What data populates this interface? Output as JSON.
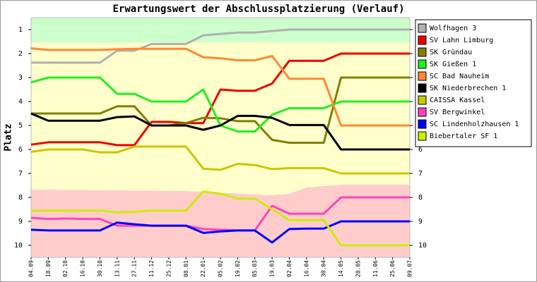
{
  "chart_data": {
    "type": "line",
    "title": "Erwartungswert der Abschlussplatzierung (Verlauf)",
    "y_label": "Platz",
    "categories": [
      "04.09",
      "18.09",
      "02.10",
      "16.10",
      "30.10",
      "13.11",
      "27.11",
      "11.12",
      "25.12",
      "08.01",
      "22.01",
      "05.02",
      "19.02",
      "05.03",
      "19.03",
      "02.04",
      "16.04",
      "30.04",
      "14.05",
      "28.05",
      "11.06",
      "25.06",
      "09.07"
    ],
    "ylim": [
      10.5,
      0.5
    ],
    "yticks": [
      1,
      2,
      3,
      4,
      5,
      6,
      7,
      8,
      9,
      10
    ],
    "grid": false,
    "legend": "right",
    "series": [
      {
        "name": "Wolfhagen 3",
        "color": "#b0b0b0",
        "values": [
          2.38,
          2.38,
          2.38,
          2.38,
          2.38,
          1.88,
          1.88,
          1.6,
          1.6,
          1.6,
          1.24,
          1.18,
          1.12,
          1.12,
          1.06,
          1.0,
          1.0,
          1.0,
          1.0,
          1.0,
          1.0,
          1.0,
          1.0
        ]
      },
      {
        "name": "SV Lahn Limburg",
        "color": "#ee0000",
        "values": [
          5.8,
          5.7,
          5.7,
          5.7,
          5.7,
          5.82,
          5.82,
          4.85,
          4.85,
          4.9,
          4.9,
          3.5,
          3.55,
          3.55,
          3.25,
          2.3,
          2.3,
          2.3,
          2.0,
          2.0,
          2.0,
          2.0,
          2.0
        ]
      },
      {
        "name": "SK Gründau",
        "color": "#808000",
        "values": [
          4.5,
          4.5,
          4.5,
          4.5,
          4.5,
          4.2,
          4.2,
          5.0,
          5.0,
          4.9,
          4.68,
          4.7,
          4.82,
          4.82,
          5.6,
          5.72,
          5.72,
          5.72,
          3.0,
          3.0,
          3.0,
          3.0,
          3.0
        ]
      },
      {
        "name": "SK Gießen 1",
        "color": "#22ee22",
        "values": [
          3.2,
          3.0,
          3.0,
          3.0,
          3.0,
          3.68,
          3.68,
          4.0,
          4.0,
          4.0,
          3.5,
          5.0,
          5.25,
          5.25,
          4.55,
          4.28,
          4.28,
          4.28,
          4.0,
          4.0,
          4.0,
          4.0,
          4.0
        ]
      },
      {
        "name": "SC Bad Nauheim",
        "color": "#ff8833",
        "values": [
          1.78,
          1.85,
          1.85,
          1.85,
          1.85,
          1.82,
          1.8,
          1.8,
          1.8,
          1.8,
          2.15,
          2.2,
          2.28,
          2.28,
          2.1,
          3.05,
          3.05,
          3.05,
          5.0,
          5.0,
          5.0,
          5.0,
          5.0
        ]
      },
      {
        "name": "SK Niederbrechen 1",
        "color": "#000000",
        "values": [
          4.5,
          4.8,
          4.8,
          4.8,
          4.8,
          4.65,
          4.62,
          5.0,
          5.0,
          5.0,
          5.18,
          5.0,
          4.6,
          4.6,
          4.68,
          4.98,
          4.98,
          4.98,
          6.0,
          6.0,
          6.0,
          6.0,
          6.0
        ]
      },
      {
        "name": "CAISSA Kassel",
        "color": "#c8c800",
        "values": [
          6.1,
          6.0,
          6.0,
          6.0,
          6.12,
          6.12,
          5.88,
          5.88,
          5.88,
          5.88,
          6.8,
          6.85,
          6.6,
          6.65,
          6.82,
          6.78,
          6.78,
          6.78,
          7.0,
          7.0,
          7.0,
          7.0,
          7.0
        ]
      },
      {
        "name": "SV Bergwinkel",
        "color": "#ff44bb",
        "values": [
          8.85,
          8.9,
          8.88,
          8.9,
          8.9,
          9.18,
          9.18,
          9.18,
          9.18,
          9.18,
          9.32,
          9.35,
          9.38,
          9.38,
          8.35,
          8.68,
          8.68,
          8.68,
          8.0,
          8.0,
          8.0,
          8.0,
          8.0
        ]
      },
      {
        "name": "SC Lindenholzhausen 1",
        "color": "#0000ff",
        "values": [
          9.35,
          9.38,
          9.38,
          9.38,
          9.38,
          9.05,
          9.12,
          9.18,
          9.18,
          9.18,
          9.48,
          9.42,
          9.38,
          9.38,
          9.88,
          9.32,
          9.3,
          9.3,
          9.0,
          9.0,
          9.0,
          9.0,
          9.0
        ]
      },
      {
        "name": "Biebertaler SF 1",
        "color": "#ccee00",
        "values": [
          8.55,
          8.55,
          8.55,
          8.55,
          8.55,
          8.62,
          8.6,
          8.55,
          8.55,
          8.55,
          7.75,
          7.85,
          8.05,
          8.05,
          8.5,
          8.95,
          8.95,
          8.95,
          10.0,
          10.0,
          10.0,
          10.0,
          10.0
        ]
      }
    ]
  }
}
